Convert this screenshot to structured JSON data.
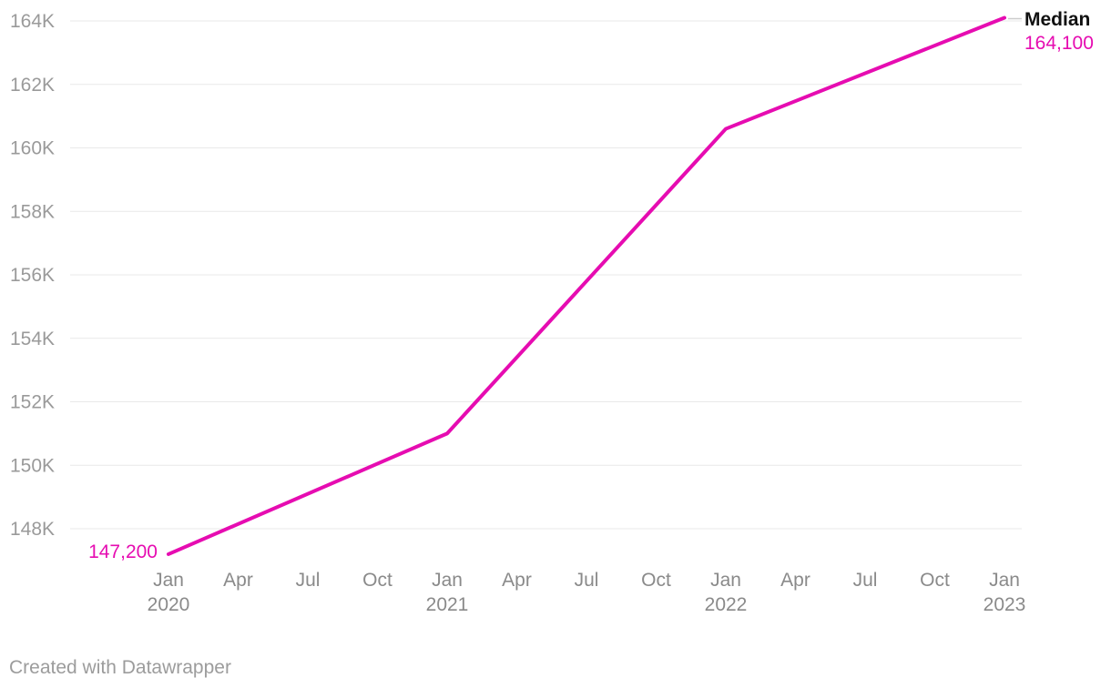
{
  "chart_data": {
    "type": "line",
    "title": "",
    "series": [
      {
        "name": "Median",
        "color": "#e60cb1",
        "x": [
          "Jan 2020",
          "Jan 2021",
          "Jan 2022",
          "Jan 2023"
        ],
        "x_tick_index": [
          0,
          4,
          8,
          12
        ],
        "values": [
          147200,
          151000,
          160600,
          164100
        ]
      }
    ],
    "x_axis": {
      "tick_interval": "quarter",
      "ticks": [
        {
          "month": "Jan",
          "year": "2020"
        },
        {
          "month": "Apr"
        },
        {
          "month": "Jul"
        },
        {
          "month": "Oct"
        },
        {
          "month": "Jan",
          "year": "2021"
        },
        {
          "month": "Apr"
        },
        {
          "month": "Jul"
        },
        {
          "month": "Oct"
        },
        {
          "month": "Jan",
          "year": "2022"
        },
        {
          "month": "Apr"
        },
        {
          "month": "Jul"
        },
        {
          "month": "Oct"
        },
        {
          "month": "Jan",
          "year": "2023"
        }
      ]
    },
    "y_axis": {
      "range": [
        148000,
        164000
      ],
      "ticks": [
        {
          "label": "164K",
          "value": 164000
        },
        {
          "label": "162K",
          "value": 162000
        },
        {
          "label": "160K",
          "value": 160000
        },
        {
          "label": "158K",
          "value": 158000
        },
        {
          "label": "156K",
          "value": 156000
        },
        {
          "label": "154K",
          "value": 154000
        },
        {
          "label": "152K",
          "value": 152000
        },
        {
          "label": "150K",
          "value": 150000
        },
        {
          "label": "148K",
          "value": 148000
        }
      ]
    },
    "grid": "horizontal",
    "legend": "direct-label",
    "annotations": {
      "start_value_label": "147,200",
      "end_series_label": "Median",
      "end_value_label": "164,100"
    }
  },
  "colors": {
    "line": "#e60cb1",
    "grid": "#e9e9e9",
    "y_tick_text": "#9a9a9a",
    "x_tick_text": "#8a8a8a",
    "series_label_text": "#111111",
    "footer_text": "#9c9c9c",
    "connector": "#cccccc",
    "background": "#ffffff"
  },
  "footer": {
    "attribution": "Created with Datawrapper"
  }
}
